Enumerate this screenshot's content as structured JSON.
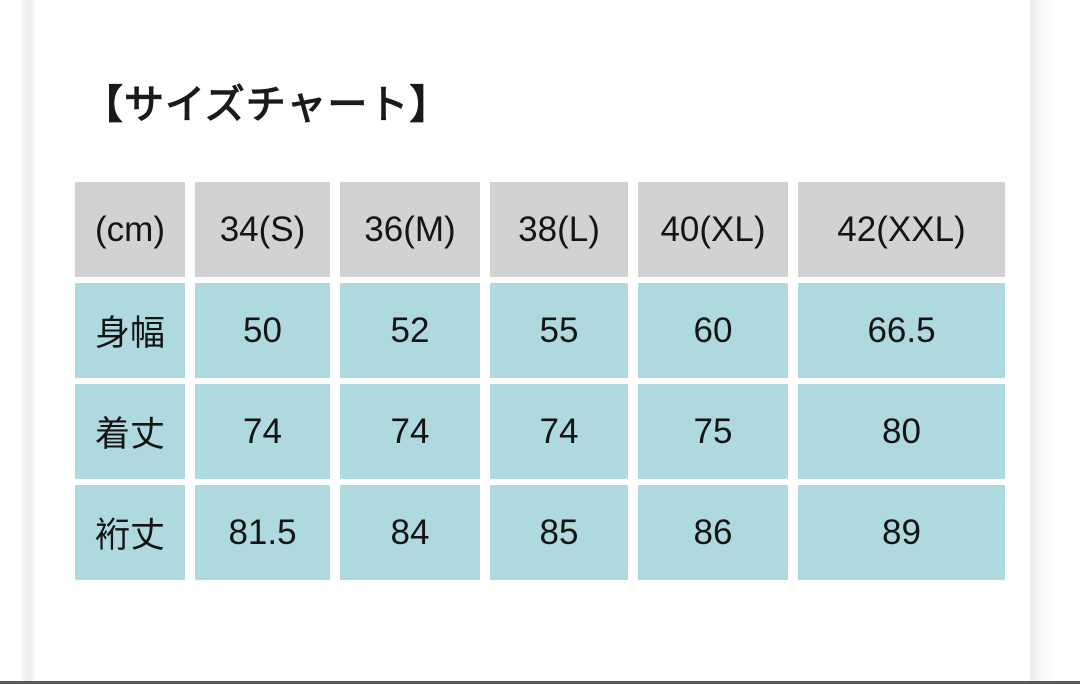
{
  "page": {
    "title": "【サイズチャート】"
  },
  "colors": {
    "header_bg": "#d2d2d2",
    "cell_bg": "#aedadf",
    "text": "#161616",
    "bottom_rule": "#595959",
    "page_bg": "#ffffff"
  },
  "chart_data": {
    "type": "table",
    "title": "サイズチャート",
    "unit_label": "(cm)",
    "columns": [
      "(cm)",
      "34(S)",
      "36(M)",
      "38(L)",
      "40(XL)",
      "42(XXL)"
    ],
    "rows": [
      {
        "label": "身幅",
        "values": [
          "50",
          "52",
          "55",
          "60",
          "66.5"
        ]
      },
      {
        "label": "着丈",
        "values": [
          "74",
          "74",
          "74",
          "75",
          "80"
        ]
      },
      {
        "label": "裄丈",
        "values": [
          "81.5",
          "84",
          "85",
          "86",
          "89"
        ]
      }
    ]
  }
}
